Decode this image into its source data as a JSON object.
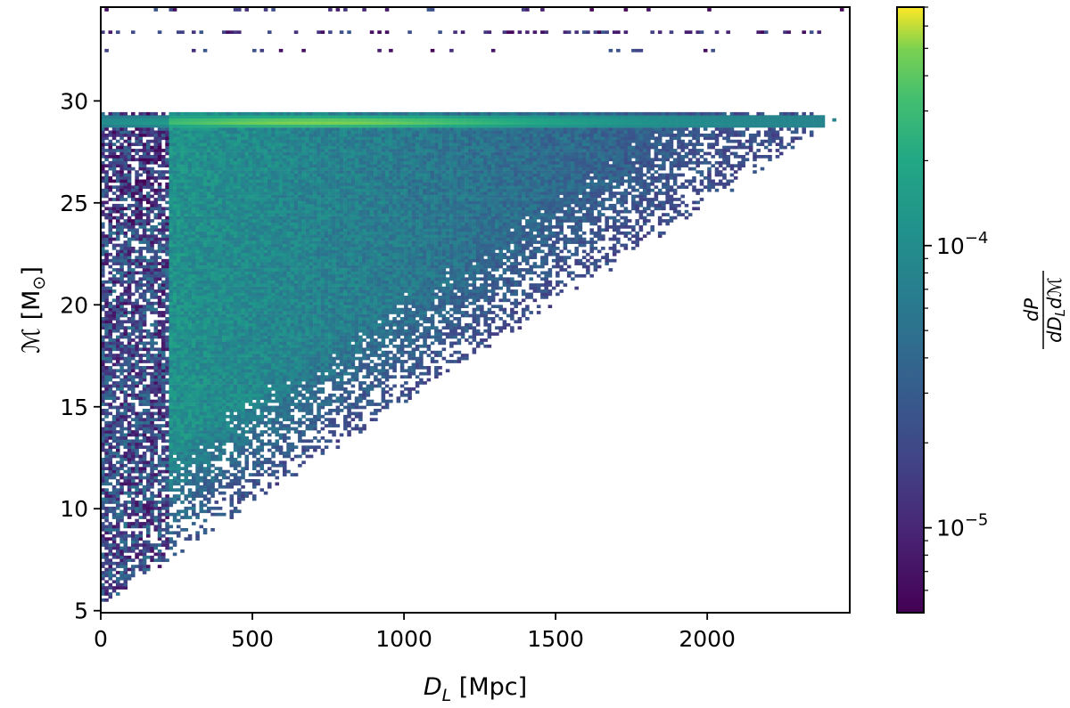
{
  "chart_data": {
    "type": "heatmap",
    "title": "",
    "xlabel": {
      "symbol": "D",
      "subscript": "L",
      "unit": " [Mpc]"
    },
    "ylabel": {
      "symbol": "ℳ",
      "unit": " [M",
      "unit_sub": "⊙",
      "unit_end": "]"
    },
    "xlim": [
      0,
      2470
    ],
    "ylim": [
      4.9,
      34.6
    ],
    "x_ticks": [
      0,
      500,
      1000,
      1500,
      2000
    ],
    "x_tick_labels": [
      "0",
      "500",
      "1000",
      "1500",
      "2000"
    ],
    "y_ticks": [
      5,
      10,
      15,
      20,
      25,
      30
    ],
    "y_tick_labels": [
      "5",
      "10",
      "15",
      "20",
      "25",
      "30"
    ],
    "colorbar": {
      "label_numerator": "dP",
      "label_denominator": "dD",
      "label_den_sub": "L",
      "label_den_end": "dℳ",
      "scale": "log",
      "range": [
        5e-06,
        0.0007
      ],
      "colormap": "viridis",
      "major_ticks": [
        {
          "value": 1e-05,
          "base": "10",
          "exp": "−5"
        },
        {
          "value": 0.0001,
          "base": "10",
          "exp": "−4"
        }
      ]
    },
    "features": {
      "strong_band_chirp_mass": 28.9,
      "band_x_range": [
        0,
        2360
      ],
      "sparse_lines_chirp_mass": [
        32.4,
        33.3,
        34.4
      ],
      "lower_boundary_start": [
        0,
        5.8
      ],
      "upper_x_limit_at_band": 2360,
      "dense_region_x_start": 215
    },
    "colors": {
      "viridis_low": "#440154",
      "viridis_mid": "#21918c",
      "viridis_high": "#fde725"
    }
  }
}
